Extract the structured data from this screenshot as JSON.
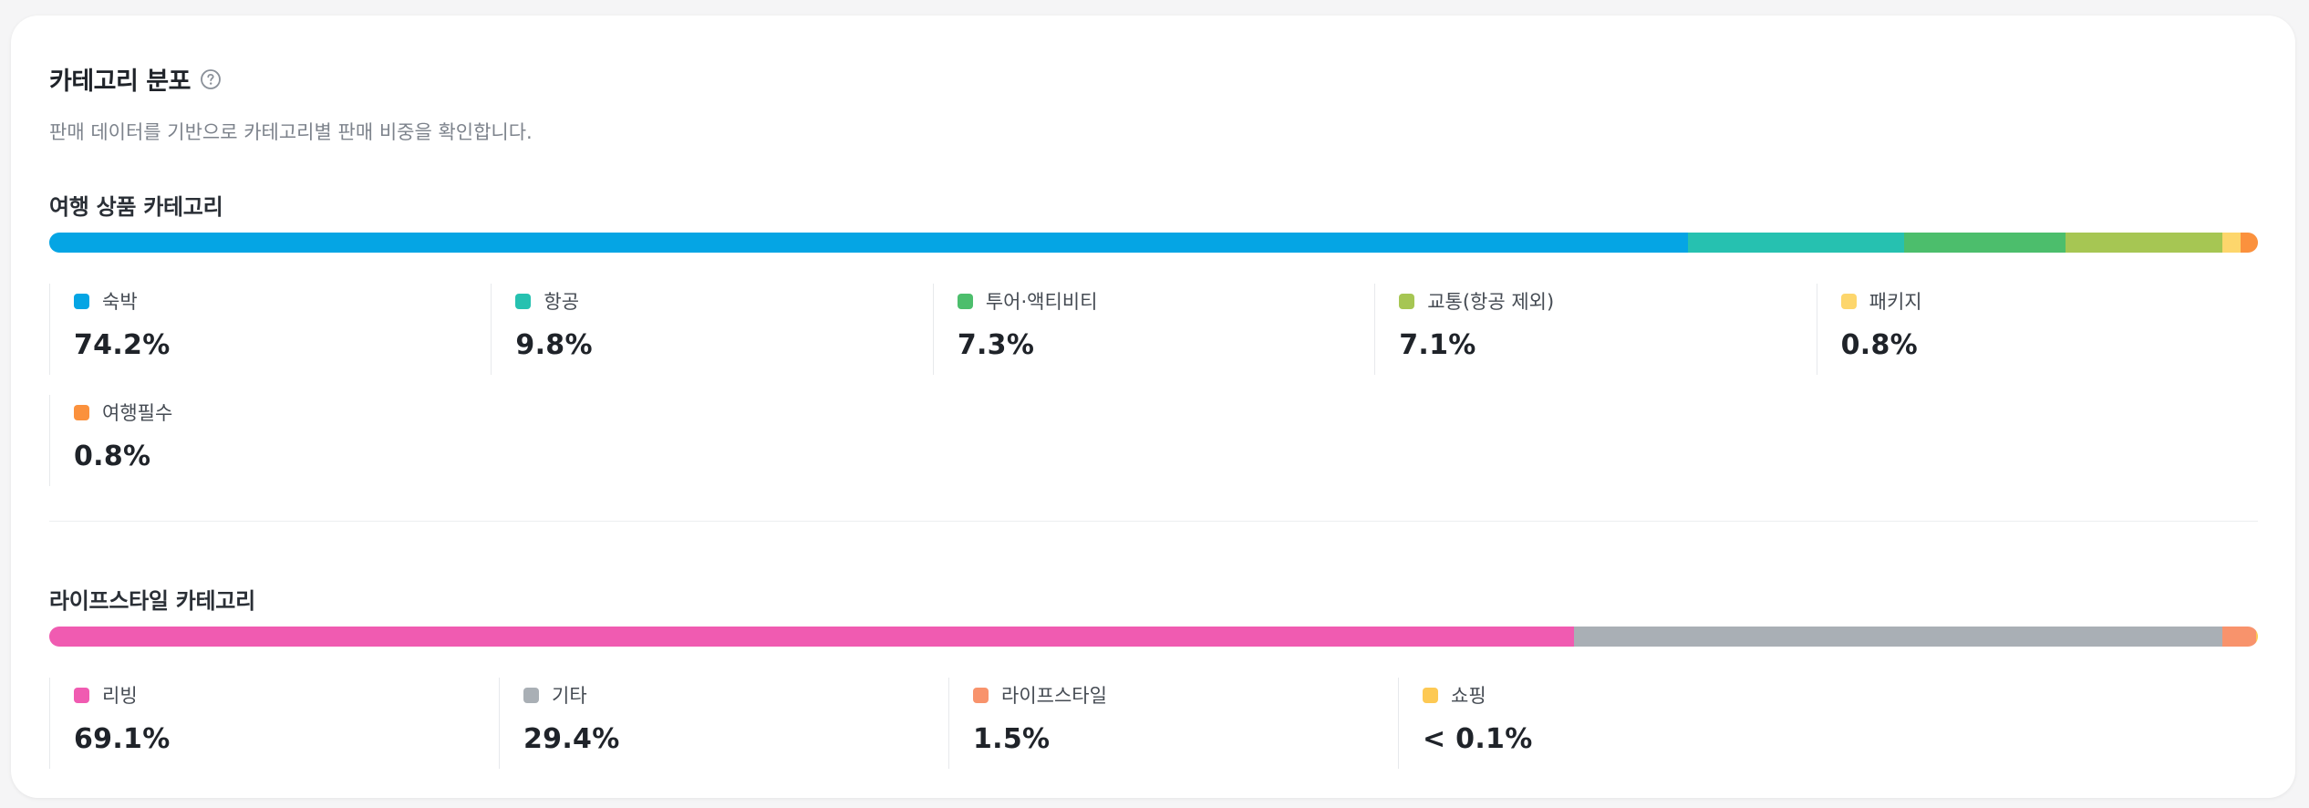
{
  "header": {
    "title": "카테고리 분포",
    "subtitle": "판매 데이터를 기반으로 카테고리별 판매 비중을 확인합니다."
  },
  "travel": {
    "title": "여행 상품 카테고리",
    "items": [
      {
        "label": "숙박",
        "value": "74.2%",
        "share": 74.2,
        "color": "#05a5e4"
      },
      {
        "label": "항공",
        "value": "9.8%",
        "share": 9.8,
        "color": "#26c1b0"
      },
      {
        "label": "투어·액티비티",
        "value": "7.3%",
        "share": 7.3,
        "color": "#4cbe6c"
      },
      {
        "label": "교통(항공 제외)",
        "value": "7.1%",
        "share": 7.1,
        "color": "#a6c653"
      },
      {
        "label": "패키지",
        "value": "0.8%",
        "share": 0.8,
        "color": "#fdd66c"
      },
      {
        "label": "여행필수",
        "value": "0.8%",
        "share": 0.8,
        "color": "#fb913d"
      }
    ]
  },
  "lifestyle": {
    "title": "라이프스타일 카테고리",
    "items": [
      {
        "label": "리빙",
        "value": "69.1%",
        "share": 69.1,
        "color": "#f05bb1"
      },
      {
        "label": "기타",
        "value": "29.4%",
        "share": 29.4,
        "color": "#a9afb5"
      },
      {
        "label": "라이프스타일",
        "value": "1.5%",
        "share": 1.5,
        "color": "#f8936c"
      },
      {
        "label": "쇼핑",
        "value": "< 0.1%",
        "share": 0.1,
        "color": "#fdc954"
      }
    ]
  }
}
